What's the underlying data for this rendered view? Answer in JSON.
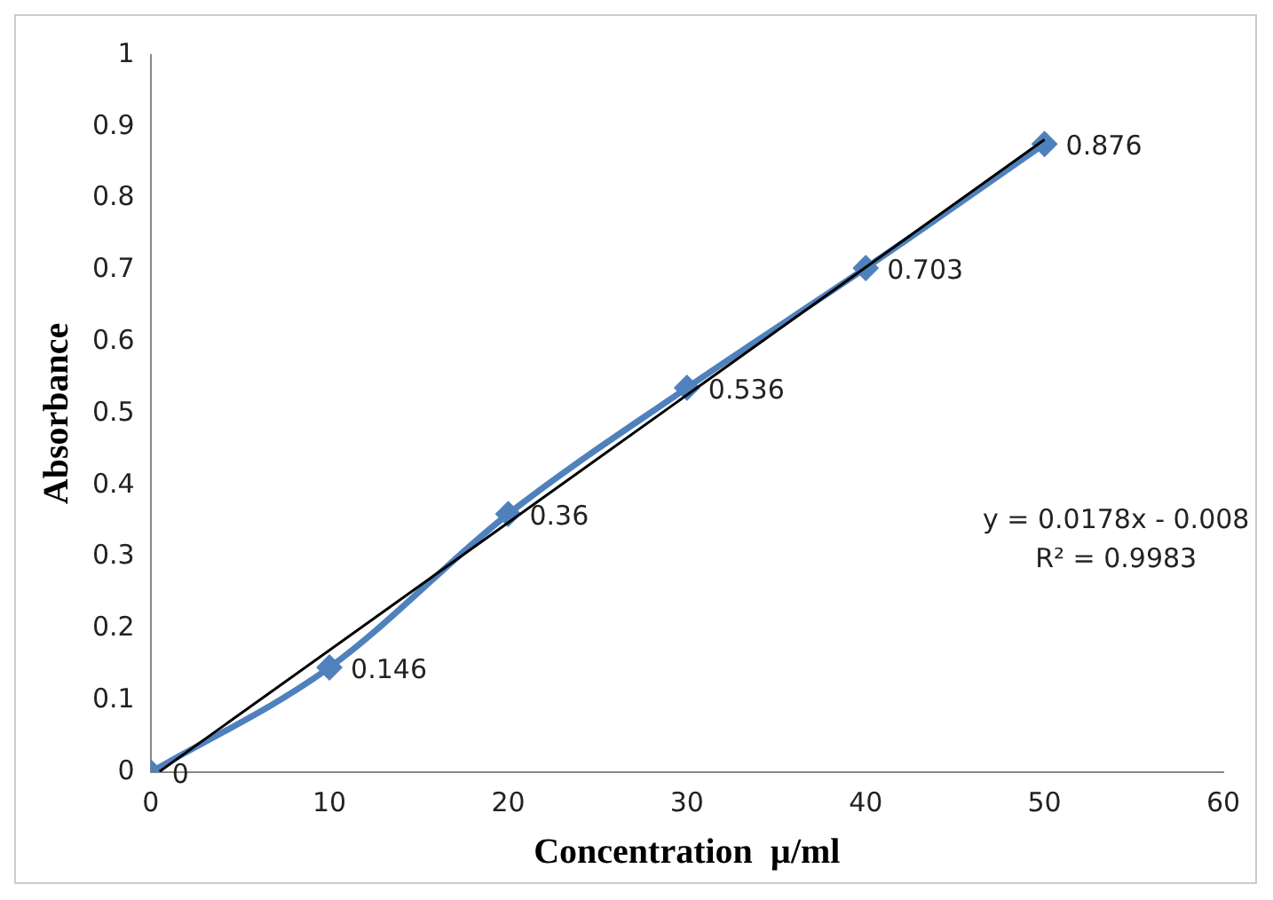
{
  "chart_data": {
    "type": "line",
    "xlabel": "Concentration  µ/ml",
    "ylabel": "Absorbance",
    "x": [
      0,
      10,
      20,
      30,
      40,
      50
    ],
    "series": [
      {
        "color": "#4f81bd",
        "values": [
          0,
          0.146,
          0.36,
          0.536,
          0.703,
          0.876
        ],
        "marker": "diamond",
        "data_labels": true
      },
      {
        "color": "#000000",
        "x": [
          0.5,
          50
        ],
        "values": [
          0.001,
          0.882
        ],
        "marker": "none"
      }
    ],
    "xlim": [
      0,
      60
    ],
    "xticks": [
      0,
      10,
      20,
      30,
      40,
      50,
      60
    ],
    "ylim": [
      0,
      1
    ],
    "yticks": [
      0,
      0.1,
      0.2,
      0.3,
      0.4,
      0.5,
      0.6,
      0.7,
      0.8,
      0.9,
      1
    ],
    "grid": false,
    "legend": false,
    "annotations": [
      "y = 0.0178x - 0.008",
      "R² = 0.9983"
    ]
  }
}
